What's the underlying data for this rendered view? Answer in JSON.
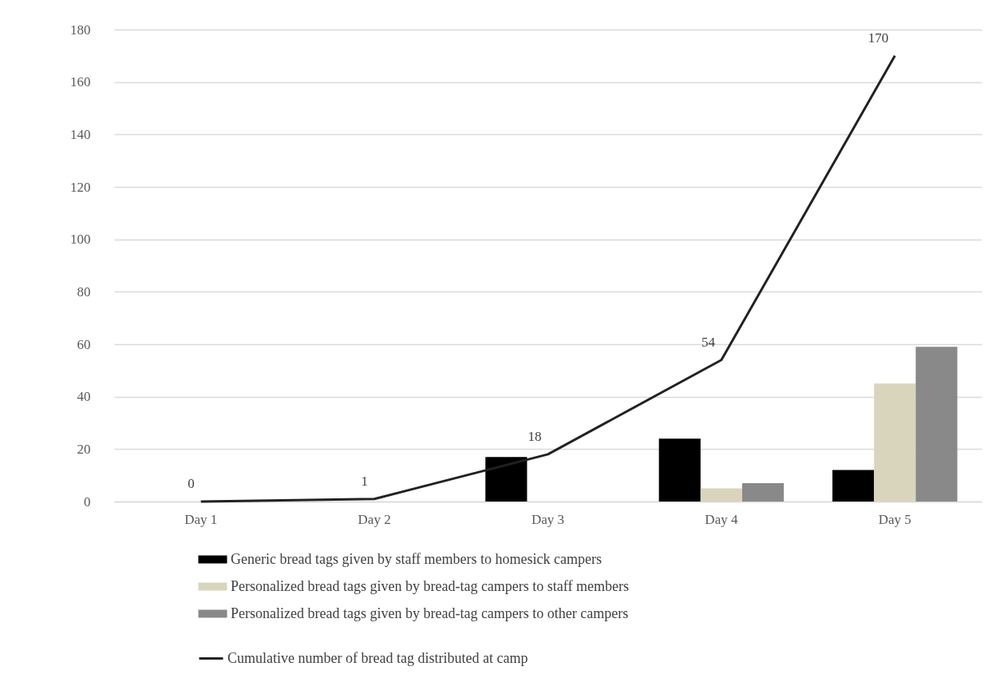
{
  "chart_data": {
    "type": "bar",
    "categories": [
      "Day 1",
      "Day 2",
      "Day 3",
      "Day 4",
      "Day 5"
    ],
    "series": [
      {
        "name": "Generic bread tags given by staff members to homesick campers",
        "color": "#000000",
        "values": [
          0,
          0,
          17,
          24,
          12
        ]
      },
      {
        "name": "Personalized bread tags given by bread-tag campers to staff members",
        "color": "#d9d5bd",
        "values": [
          0,
          0,
          0,
          5,
          45
        ]
      },
      {
        "name": "Personalized bread tags given by bread-tag campers to other campers",
        "color": "#898989",
        "values": [
          0,
          0,
          0,
          7,
          59
        ]
      },
      {
        "name": "Cumulative number of bread tag distributed at camp",
        "type": "line",
        "color": "#222222",
        "values": [
          0,
          1,
          18,
          54,
          170
        ],
        "value_labels": [
          "0",
          "1",
          "18",
          "54",
          "170"
        ]
      }
    ],
    "ylim": [
      0,
      180
    ],
    "yticks": [
      0,
      20,
      40,
      60,
      80,
      100,
      120,
      140,
      160,
      180
    ],
    "grid": "y",
    "legend": "bottom",
    "marker": "none",
    "line_style": "solid"
  }
}
